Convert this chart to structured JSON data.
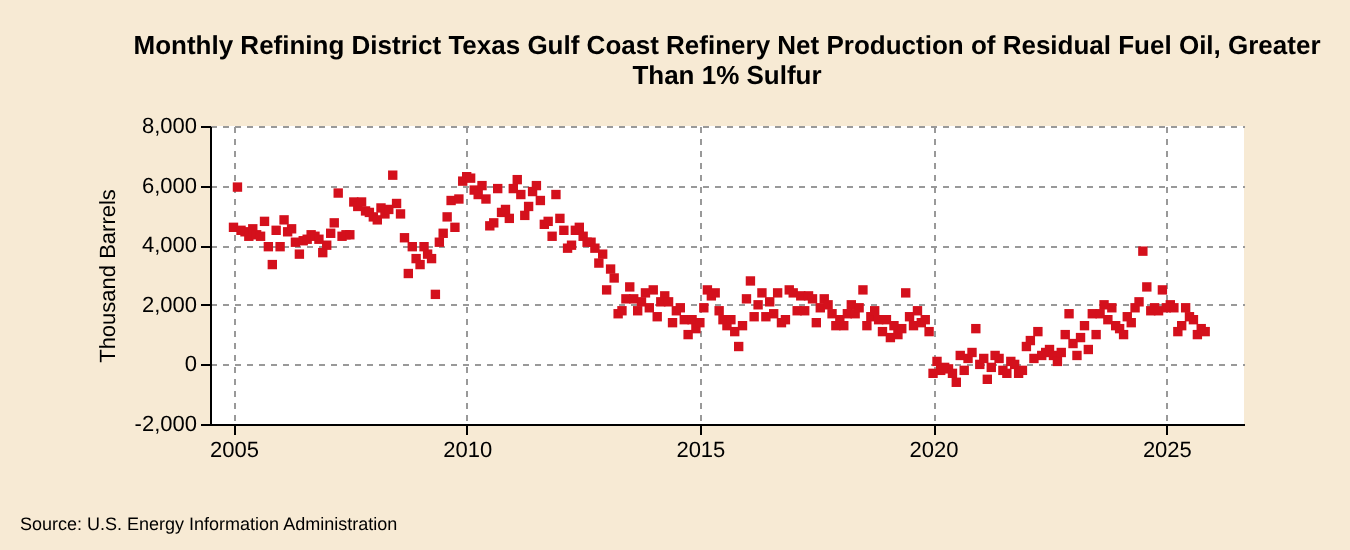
{
  "chart_data": {
    "type": "scatter",
    "title": "Monthly Refining District Texas Gulf Coast Refinery Net Production of Residual Fuel Oil, Greater Than 1% Sulfur",
    "ylabel": "Thousand Barrels",
    "annotations": [
      "Source: U.S. Energy Information Administration"
    ],
    "marker": "square",
    "grid": true,
    "xlim": [
      "2004-07",
      "2026-09"
    ],
    "xticks": [
      {
        "value": "2005",
        "label": "2005"
      },
      {
        "value": "2010",
        "label": "2010"
      },
      {
        "value": "2015",
        "label": "2015"
      },
      {
        "value": "2020",
        "label": "2020"
      },
      {
        "value": "2025",
        "label": "2025"
      }
    ],
    "ylim": [
      -2000,
      8000
    ],
    "yticks": [
      {
        "value": -2000,
        "label": "-2,000"
      },
      {
        "value": 0,
        "label": "0"
      },
      {
        "value": 2000,
        "label": "2,000"
      },
      {
        "value": 4000,
        "label": "4,000"
      },
      {
        "value": 6000,
        "label": "6,000"
      },
      {
        "value": 8000,
        "label": "8,000"
      }
    ],
    "series": [
      {
        "color": "#d4101c",
        "values": [
          4600,
          5950,
          4500,
          4450,
          4300,
          4550,
          4350,
          4300,
          4800,
          3950,
          3350,
          4500,
          3950,
          4850,
          4450,
          4550,
          4100,
          3700,
          4150,
          4200,
          4350,
          4300,
          4200,
          3750,
          4000,
          4400,
          4750,
          5750,
          4300,
          4350,
          4350,
          5450,
          5300,
          5450,
          5150,
          5100,
          4950,
          4850,
          5250,
          5050,
          5200,
          6350,
          5400,
          5050,
          4250,
          3050,
          3950,
          3550,
          3350,
          3950,
          3700,
          3550,
          2350,
          4100,
          4400,
          4950,
          5500,
          4600,
          5550,
          6150,
          6300,
          6250,
          5850,
          5700,
          6000,
          5550,
          4650,
          4750,
          5900,
          5100,
          5200,
          4900,
          5900,
          6200,
          5700,
          5000,
          5300,
          5800,
          6000,
          5500,
          4700,
          4800,
          4300,
          5700,
          4900,
          4500,
          3900,
          4000,
          4500,
          4600,
          4300,
          4100,
          4100,
          3900,
          3400,
          3700,
          2500,
          3200,
          2900,
          1700,
          1800,
          2200,
          2600,
          2200,
          1800,
          2100,
          2400,
          1900,
          2500,
          1600,
          2100,
          2300,
          2100,
          1400,
          1800,
          1900,
          1500,
          1000,
          1500,
          1200,
          1400,
          1900,
          2500,
          2300,
          2400,
          1800,
          1500,
          1300,
          1500,
          1100,
          600,
          1300,
          2200,
          2800,
          1600,
          2000,
          2400,
          1600,
          2100,
          1700,
          2400,
          1400,
          1500,
          2500,
          2400,
          1800,
          2300,
          1800,
          2300,
          2200,
          1400,
          1900,
          2200,
          2000,
          1700,
          1300,
          1500,
          1300,
          1700,
          2000,
          1700,
          1900,
          2500,
          1300,
          1600,
          1800,
          1500,
          1100,
          1500,
          900,
          1300,
          1000,
          1200,
          2400,
          1600,
          1300,
          1800,
          1400,
          1500,
          1100,
          -300,
          100,
          -200,
          -100,
          -150,
          -300,
          -600,
          300,
          -200,
          200,
          400,
          1200,
          0,
          200,
          -500,
          -100,
          300,
          200,
          -200,
          -300,
          100,
          0,
          -300,
          -200,
          600,
          800,
          200,
          1100,
          300,
          400,
          500,
          300,
          100,
          400,
          1000,
          1700,
          700,
          300,
          900,
          1300,
          500,
          1700,
          1000,
          1700,
          2000,
          1500,
          1900,
          1300,
          1200,
          1000,
          1600,
          1400,
          1900,
          2100,
          3800,
          2600,
          1800,
          1900,
          1800,
          2500,
          1900,
          2000,
          1900,
          1100,
          1300,
          1900,
          1600,
          1500,
          1000,
          1200,
          1100
        ],
        "x": [
          "2005-01",
          "2005-02",
          "2005-03",
          "2005-04",
          "2005-05",
          "2005-06",
          "2005-07",
          "2005-08",
          "2005-09",
          "2005-10",
          "2005-11",
          "2005-12",
          "2006-01",
          "2006-02",
          "2006-03",
          "2006-04",
          "2006-05",
          "2006-06",
          "2006-07",
          "2006-08",
          "2006-09",
          "2006-10",
          "2006-11",
          "2006-12",
          "2007-01",
          "2007-02",
          "2007-03",
          "2007-04",
          "2007-05",
          "2007-06",
          "2007-07",
          "2007-08",
          "2007-09",
          "2007-10",
          "2007-11",
          "2007-12",
          "2008-01",
          "2008-02",
          "2008-03",
          "2008-04",
          "2008-05",
          "2008-06",
          "2008-07",
          "2008-08",
          "2008-09",
          "2008-10",
          "2008-11",
          "2008-12",
          "2009-01",
          "2009-02",
          "2009-03",
          "2009-04",
          "2009-05",
          "2009-06",
          "2009-07",
          "2009-08",
          "2009-09",
          "2009-10",
          "2009-11",
          "2009-12",
          "2010-01",
          "2010-02",
          "2010-03",
          "2010-04",
          "2010-05",
          "2010-06",
          "2010-07",
          "2010-08",
          "2010-09",
          "2010-10",
          "2010-11",
          "2010-12",
          "2011-01",
          "2011-02",
          "2011-03",
          "2011-04",
          "2011-05",
          "2011-06",
          "2011-07",
          "2011-08",
          "2011-09",
          "2011-10",
          "2011-11",
          "2011-12",
          "2012-01",
          "2012-02",
          "2012-03",
          "2012-04",
          "2012-05",
          "2012-06",
          "2012-07",
          "2012-08",
          "2012-09",
          "2012-10",
          "2012-11",
          "2012-12",
          "2013-01",
          "2013-02",
          "2013-03",
          "2013-04",
          "2013-05",
          "2013-06",
          "2013-07",
          "2013-08",
          "2013-09",
          "2013-10",
          "2013-11",
          "2013-12",
          "2014-01",
          "2014-02",
          "2014-03",
          "2014-04",
          "2014-05",
          "2014-06",
          "2014-07",
          "2014-08",
          "2014-09",
          "2014-10",
          "2014-11",
          "2014-12",
          "2015-01",
          "2015-02",
          "2015-03",
          "2015-04",
          "2015-05",
          "2015-06",
          "2015-07",
          "2015-08",
          "2015-09",
          "2015-10",
          "2015-11",
          "2015-12",
          "2016-01",
          "2016-02",
          "2016-03",
          "2016-04",
          "2016-05",
          "2016-06",
          "2016-07",
          "2016-08",
          "2016-09",
          "2016-10",
          "2016-11",
          "2016-12",
          "2017-01",
          "2017-02",
          "2017-03",
          "2017-04",
          "2017-05",
          "2017-06",
          "2017-07",
          "2017-08",
          "2017-09",
          "2017-10",
          "2017-11",
          "2017-12",
          "2018-01",
          "2018-02",
          "2018-03",
          "2018-04",
          "2018-05",
          "2018-06",
          "2018-07",
          "2018-08",
          "2018-09",
          "2018-10",
          "2018-11",
          "2018-12",
          "2019-01",
          "2019-02",
          "2019-03",
          "2019-04",
          "2019-05",
          "2019-06",
          "2019-07",
          "2019-08",
          "2019-09",
          "2019-10",
          "2019-11",
          "2019-12",
          "2020-01",
          "2020-02",
          "2020-03",
          "2020-04",
          "2020-05",
          "2020-06",
          "2020-07",
          "2020-08",
          "2020-09",
          "2020-10",
          "2020-11",
          "2020-12",
          "2021-01",
          "2021-02",
          "2021-03",
          "2021-04",
          "2021-05",
          "2021-06",
          "2021-07",
          "2021-08",
          "2021-09",
          "2021-10",
          "2021-11",
          "2021-12",
          "2022-01",
          "2022-02",
          "2022-03",
          "2022-04",
          "2022-05",
          "2022-06",
          "2022-07",
          "2022-08",
          "2022-09",
          "2022-10",
          "2022-11",
          "2022-12",
          "2023-01",
          "2023-02",
          "2023-03",
          "2023-04",
          "2023-05",
          "2023-06",
          "2023-07",
          "2023-08",
          "2023-09",
          "2023-10",
          "2023-11",
          "2023-12",
          "2024-01",
          "2024-02",
          "2024-03",
          "2024-04",
          "2024-05",
          "2024-06",
          "2024-07",
          "2024-08",
          "2024-09",
          "2024-10",
          "2024-11",
          "2024-12",
          "2025-01",
          "2025-02",
          "2025-03",
          "2025-04",
          "2025-05",
          "2025-06",
          "2025-07",
          "2025-08",
          "2025-09",
          "2025-10",
          "2025-11"
        ]
      }
    ]
  }
}
